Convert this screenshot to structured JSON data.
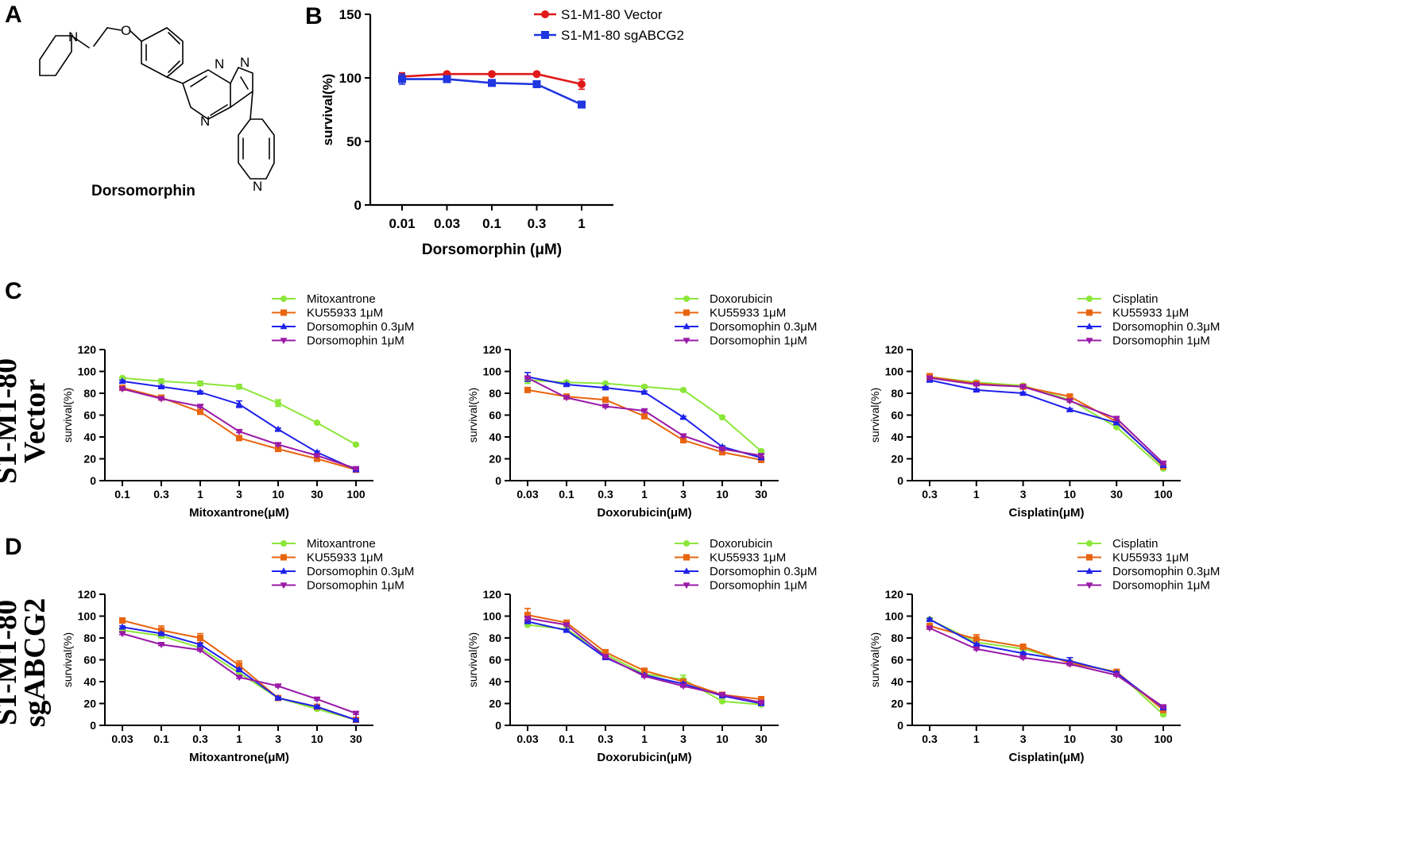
{
  "panel_labels": {
    "a": "A",
    "b": "B",
    "c": "C",
    "d": "D"
  },
  "molecule": {
    "name": "Dorsomorphin",
    "atoms": [
      "N",
      "O",
      "N",
      "N",
      "N",
      "N"
    ]
  },
  "row_labels": {
    "vector": [
      "S1-M1-80",
      "Vector"
    ],
    "sgabcg2": [
      "S1-M1-80",
      "sgABCG2"
    ]
  },
  "colors": {
    "green": "#8ce63a",
    "orange": "#e8650f",
    "blue": "#1f22ea",
    "purple": "#9a1aa8",
    "red": "#e01818",
    "darkblue": "#1f36e0"
  },
  "chart_data": [
    {
      "id": "B",
      "type": "line",
      "xlabel": "Dorsomorphin (μM)",
      "ylabel": "survival(%)",
      "categories": [
        "0.01",
        "0.03",
        "0.1",
        "0.3",
        "1"
      ],
      "ylim": [
        0,
        150
      ],
      "yticks": [
        0,
        50,
        100,
        150
      ],
      "legend_position": "top-right",
      "series": [
        {
          "name": "S1-M1-80 Vector",
          "marker": "circle",
          "color": "#e01818",
          "values": [
            101,
            103,
            103,
            103,
            95
          ],
          "errors": [
            3,
            1,
            1,
            1,
            4
          ]
        },
        {
          "name": "S1-M1-80 sgABCG2",
          "marker": "square",
          "color": "#1f36e0",
          "values": [
            99,
            99,
            96,
            95,
            79
          ],
          "errors": [
            4,
            1,
            1,
            1,
            2
          ]
        }
      ]
    },
    {
      "id": "C1",
      "type": "line",
      "xlabel": "Mitoxantrone(μM)",
      "ylabel": "survival(%)",
      "categories": [
        "0.1",
        "0.3",
        "1",
        "3",
        "10",
        "30",
        "100"
      ],
      "ylim": [
        0,
        120
      ],
      "yticks": [
        0,
        20,
        40,
        60,
        80,
        100,
        120
      ],
      "legend_position": "top",
      "series": [
        {
          "name": "Mitoxantrone",
          "marker": "circle",
          "color": "#8ce63a",
          "values": [
            94,
            91,
            89,
            86,
            71,
            53,
            33
          ],
          "errors": [
            1,
            2,
            2,
            2,
            3,
            1,
            1
          ]
        },
        {
          "name": "KU55933 1μM",
          "marker": "square",
          "color": "#e8650f",
          "values": [
            85,
            76,
            63,
            39,
            29,
            20,
            10
          ],
          "errors": [
            2,
            1,
            1,
            1,
            1,
            1,
            1
          ]
        },
        {
          "name": "Dorsomophin 0.3μM",
          "marker": "triangle-up",
          "color": "#1f22ea",
          "values": [
            91,
            86,
            81,
            70,
            47,
            26,
            10
          ],
          "errors": [
            1,
            1,
            1,
            3,
            1,
            1,
            1
          ]
        },
        {
          "name": "Dorsomophin 1μM",
          "marker": "triangle-down",
          "color": "#9a1aa8",
          "values": [
            84,
            75,
            68,
            45,
            33,
            23,
            11
          ],
          "errors": [
            1,
            1,
            1,
            1,
            1,
            1,
            1
          ]
        }
      ]
    },
    {
      "id": "C2",
      "type": "line",
      "xlabel": "Doxorubicin(μM)",
      "ylabel": "survival(%)",
      "categories": [
        "0.03",
        "0.1",
        "0.3",
        "1",
        "3",
        "10",
        "30"
      ],
      "ylim": [
        0,
        120
      ],
      "yticks": [
        0,
        20,
        40,
        60,
        80,
        100,
        120
      ],
      "legend_position": "top",
      "series": [
        {
          "name": "Doxorubicin",
          "marker": "circle",
          "color": "#8ce63a",
          "values": [
            92,
            90,
            89,
            86,
            83,
            58,
            27
          ],
          "errors": [
            3,
            1,
            1,
            1,
            1,
            1,
            1
          ]
        },
        {
          "name": "KU55933 1μM",
          "marker": "square",
          "color": "#e8650f",
          "values": [
            83,
            77,
            74,
            59,
            37,
            26,
            19
          ],
          "errors": [
            1,
            1,
            1,
            1,
            1,
            1,
            1
          ]
        },
        {
          "name": "Dorsomophin 0.3μM",
          "marker": "triangle-up",
          "color": "#1f22ea",
          "values": [
            95,
            88,
            85,
            81,
            58,
            31,
            21
          ],
          "errors": [
            4,
            1,
            1,
            1,
            1,
            1,
            1
          ]
        },
        {
          "name": "Dorsomophin 1μM",
          "marker": "triangle-down",
          "color": "#9a1aa8",
          "values": [
            94,
            76,
            68,
            64,
            41,
            29,
            23
          ],
          "errors": [
            1,
            1,
            1,
            1,
            1,
            1,
            1
          ]
        }
      ]
    },
    {
      "id": "C3",
      "type": "line",
      "xlabel": "Cisplatin(μM)",
      "ylabel": "survival(%)",
      "categories": [
        "0.3",
        "1",
        "3",
        "10",
        "30",
        "100"
      ],
      "ylim": [
        0,
        120
      ],
      "yticks": [
        0,
        20,
        40,
        60,
        80,
        100,
        120
      ],
      "legend_position": "top",
      "series": [
        {
          "name": "Cisplatin",
          "marker": "circle",
          "color": "#8ce63a",
          "values": [
            95,
            90,
            87,
            74,
            49,
            11
          ],
          "errors": [
            2,
            1,
            1,
            2,
            1,
            1
          ]
        },
        {
          "name": "KU55933 1μM",
          "marker": "square",
          "color": "#e8650f",
          "values": [
            95,
            89,
            86,
            77,
            54,
            13
          ],
          "errors": [
            3,
            1,
            1,
            2,
            1,
            1
          ]
        },
        {
          "name": "Dorsomophin 0.3μM",
          "marker": "triangle-up",
          "color": "#1f22ea",
          "values": [
            92,
            83,
            80,
            65,
            53,
            14
          ],
          "errors": [
            1,
            1,
            1,
            1,
            1,
            1
          ]
        },
        {
          "name": "Dorsomophin 1μM",
          "marker": "triangle-down",
          "color": "#9a1aa8",
          "values": [
            94,
            88,
            86,
            73,
            57,
            16
          ],
          "errors": [
            1,
            1,
            1,
            1,
            1,
            1
          ]
        }
      ]
    },
    {
      "id": "D1",
      "type": "line",
      "xlabel": "Mitoxantrone(μM)",
      "ylabel": "survival(%)",
      "categories": [
        "0.03",
        "0.1",
        "0.3",
        "1",
        "3",
        "10",
        "30"
      ],
      "ylim": [
        0,
        120
      ],
      "yticks": [
        0,
        20,
        40,
        60,
        80,
        100,
        120
      ],
      "legend_position": "top",
      "series": [
        {
          "name": "Mitoxantrone",
          "marker": "circle",
          "color": "#8ce63a",
          "values": [
            87,
            82,
            71,
            48,
            25,
            15,
            5
          ],
          "errors": [
            1,
            2,
            1,
            2,
            1,
            1,
            1
          ]
        },
        {
          "name": "KU55933 1μM",
          "marker": "square",
          "color": "#e8650f",
          "values": [
            96,
            87,
            80,
            55,
            25,
            17,
            5
          ],
          "errors": [
            1,
            4,
            4,
            4,
            1,
            1,
            1
          ]
        },
        {
          "name": "Dorsomophin 0.3μM",
          "marker": "triangle-up",
          "color": "#1f22ea",
          "values": [
            90,
            84,
            74,
            51,
            25,
            17,
            5
          ],
          "errors": [
            1,
            1,
            1,
            1,
            1,
            1,
            1
          ]
        },
        {
          "name": "Dorsomophin 1μM",
          "marker": "triangle-down",
          "color": "#9a1aa8",
          "values": [
            84,
            74,
            69,
            44,
            36,
            24,
            11
          ],
          "errors": [
            1,
            1,
            1,
            1,
            1,
            1,
            1
          ]
        }
      ]
    },
    {
      "id": "D2",
      "type": "line",
      "xlabel": "Doxorubicin(μM)",
      "ylabel": "survival(%)",
      "categories": [
        "0.03",
        "0.1",
        "0.3",
        "1",
        "3",
        "10",
        "30"
      ],
      "ylim": [
        0,
        120
      ],
      "yticks": [
        0,
        20,
        40,
        60,
        80,
        100,
        120
      ],
      "legend_position": "top",
      "series": [
        {
          "name": "Doxorubicin",
          "marker": "circle",
          "color": "#8ce63a",
          "values": [
            92,
            88,
            65,
            47,
            42,
            22,
            19
          ],
          "errors": [
            1,
            1,
            1,
            1,
            4,
            1,
            1
          ]
        },
        {
          "name": "KU55933 1μM",
          "marker": "square",
          "color": "#e8650f",
          "values": [
            101,
            94,
            67,
            50,
            40,
            28,
            24
          ],
          "errors": [
            6,
            2,
            2,
            2,
            1,
            1,
            2
          ]
        },
        {
          "name": "Dorsomophin 0.3μM",
          "marker": "triangle-up",
          "color": "#1f22ea",
          "values": [
            95,
            87,
            62,
            46,
            38,
            27,
            20
          ],
          "errors": [
            1,
            1,
            1,
            1,
            1,
            1,
            1
          ]
        },
        {
          "name": "Dorsomophin 1μM",
          "marker": "triangle-down",
          "color": "#9a1aa8",
          "values": [
            98,
            92,
            63,
            45,
            36,
            28,
            21
          ],
          "errors": [
            1,
            1,
            1,
            1,
            1,
            1,
            1
          ]
        }
      ]
    },
    {
      "id": "D3",
      "type": "line",
      "xlabel": "Cisplatin(μM)",
      "ylabel": "survival(%)",
      "categories": [
        "0.3",
        "1",
        "3",
        "10",
        "30",
        "100"
      ],
      "ylim": [
        0,
        120
      ],
      "yticks": [
        0,
        20,
        40,
        60,
        80,
        100,
        120
      ],
      "legend_position": "top",
      "series": [
        {
          "name": "Cisplatin",
          "marker": "circle",
          "color": "#8ce63a",
          "values": [
            97,
            76,
            70,
            58,
            49,
            10
          ],
          "errors": [
            1,
            3,
            1,
            1,
            1,
            1
          ]
        },
        {
          "name": "KU55933 1μM",
          "marker": "square",
          "color": "#e8650f",
          "values": [
            91,
            79,
            72,
            57,
            49,
            14
          ],
          "errors": [
            1,
            4,
            2,
            1,
            1,
            1
          ]
        },
        {
          "name": "Dorsomophin 0.3μM",
          "marker": "triangle-up",
          "color": "#1f22ea",
          "values": [
            97,
            74,
            66,
            59,
            48,
            16
          ],
          "errors": [
            1,
            1,
            1,
            3,
            1,
            1
          ]
        },
        {
          "name": "Dorsomophin 1μM",
          "marker": "triangle-down",
          "color": "#9a1aa8",
          "values": [
            89,
            70,
            62,
            56,
            46,
            17
          ],
          "errors": [
            1,
            1,
            1,
            1,
            1,
            1
          ]
        }
      ]
    }
  ]
}
